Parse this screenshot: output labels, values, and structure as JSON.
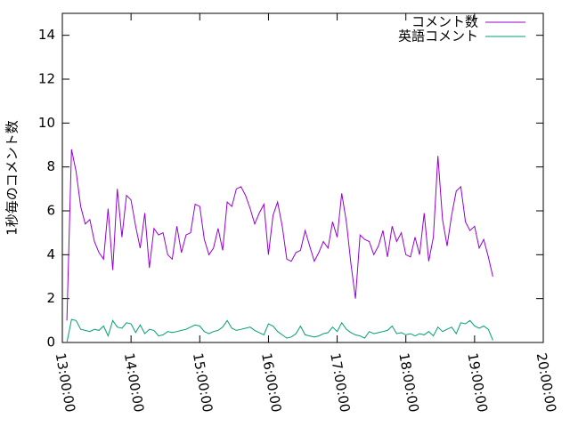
{
  "chart_data": {
    "type": "line",
    "ylabel": "1秒毎のコメント数",
    "x": [
      "13:04:00",
      "13:08:00",
      "13:12:00",
      "13:16:00",
      "13:20:00",
      "13:24:00",
      "13:28:00",
      "13:32:00",
      "13:36:00",
      "13:40:00",
      "13:44:00",
      "13:48:00",
      "13:52:00",
      "13:56:00",
      "14:00:00",
      "14:04:00",
      "14:08:00",
      "14:12:00",
      "14:16:00",
      "14:20:00",
      "14:24:00",
      "14:28:00",
      "14:32:00",
      "14:36:00",
      "14:40:00",
      "14:44:00",
      "14:48:00",
      "14:52:00",
      "14:56:00",
      "15:00:00",
      "15:04:00",
      "15:08:00",
      "15:12:00",
      "15:16:00",
      "15:20:00",
      "15:24:00",
      "15:28:00",
      "15:32:00",
      "15:36:00",
      "15:40:00",
      "15:44:00",
      "15:48:00",
      "15:52:00",
      "15:56:00",
      "16:00:00",
      "16:04:00",
      "16:08:00",
      "16:12:00",
      "16:16:00",
      "16:20:00",
      "16:24:00",
      "16:28:00",
      "16:32:00",
      "16:36:00",
      "16:40:00",
      "16:44:00",
      "16:48:00",
      "16:52:00",
      "16:56:00",
      "17:00:00",
      "17:04:00",
      "17:08:00",
      "17:12:00",
      "17:16:00",
      "17:20:00",
      "17:24:00",
      "17:28:00",
      "17:32:00",
      "17:36:00",
      "17:40:00",
      "17:44:00",
      "17:48:00",
      "17:52:00",
      "17:56:00",
      "18:00:00",
      "18:04:00",
      "18:08:00",
      "18:12:00",
      "18:16:00",
      "18:20:00",
      "18:24:00",
      "18:28:00",
      "18:32:00",
      "18:36:00",
      "18:40:00",
      "18:44:00",
      "18:48:00",
      "18:52:00",
      "18:56:00",
      "19:00:00",
      "19:04:00",
      "19:08:00",
      "19:12:00",
      "19:16:00"
    ],
    "series": [
      {
        "name": "コメント数",
        "color": "#9400d3",
        "values": [
          1.0,
          8.8,
          7.8,
          6.2,
          5.4,
          5.6,
          4.6,
          4.1,
          3.8,
          6.1,
          3.3,
          7.0,
          4.8,
          6.7,
          6.5,
          5.3,
          4.3,
          5.9,
          3.4,
          5.2,
          4.9,
          5.0,
          4.0,
          3.8,
          5.3,
          4.1,
          4.9,
          5.0,
          6.3,
          6.2,
          4.7,
          4.0,
          4.3,
          5.2,
          4.2,
          6.4,
          6.2,
          7.0,
          7.1,
          6.7,
          6.1,
          5.4,
          5.9,
          6.3,
          4.0,
          5.8,
          6.4,
          5.3,
          3.8,
          3.7,
          4.1,
          4.2,
          5.1,
          4.4,
          3.7,
          4.1,
          4.6,
          4.3,
          5.5,
          4.8,
          6.8,
          5.5,
          3.6,
          2.0,
          4.9,
          4.7,
          4.6,
          4.0,
          4.4,
          5.1,
          3.9,
          5.3,
          4.6,
          5.0,
          4.0,
          3.9,
          4.8,
          4.0,
          5.9,
          3.7,
          4.8,
          8.5,
          5.6,
          4.4,
          5.8,
          6.9,
          7.1,
          5.5,
          5.1,
          5.3,
          4.3,
          4.7,
          3.9,
          3.0
        ]
      },
      {
        "name": "英語コメント",
        "color": "#009e73",
        "values": [
          0.0,
          1.05,
          1.0,
          0.6,
          0.55,
          0.5,
          0.6,
          0.55,
          0.75,
          0.3,
          1.0,
          0.7,
          0.65,
          0.9,
          0.85,
          0.45,
          0.8,
          0.4,
          0.6,
          0.55,
          0.3,
          0.35,
          0.5,
          0.45,
          0.5,
          0.55,
          0.6,
          0.7,
          0.8,
          0.75,
          0.5,
          0.4,
          0.5,
          0.55,
          0.7,
          1.0,
          0.65,
          0.55,
          0.6,
          0.65,
          0.7,
          0.55,
          0.45,
          0.35,
          0.85,
          0.75,
          0.5,
          0.35,
          0.2,
          0.25,
          0.4,
          0.75,
          0.35,
          0.3,
          0.25,
          0.3,
          0.4,
          0.45,
          0.7,
          0.5,
          0.9,
          0.6,
          0.45,
          0.35,
          0.3,
          0.2,
          0.5,
          0.4,
          0.45,
          0.5,
          0.55,
          0.75,
          0.4,
          0.45,
          0.35,
          0.4,
          0.3,
          0.4,
          0.35,
          0.5,
          0.3,
          0.7,
          0.5,
          0.6,
          0.7,
          0.4,
          0.9,
          0.85,
          1.0,
          0.75,
          0.65,
          0.75,
          0.6,
          0.1
        ]
      }
    ],
    "xlim": [
      "13:00:00",
      "20:00:00"
    ],
    "xticks": [
      "13:00:00",
      "14:00:00",
      "15:00:00",
      "16:00:00",
      "17:00:00",
      "18:00:00",
      "19:00:00",
      "20:00:00"
    ],
    "ylim": [
      0,
      15
    ],
    "yticks": [
      0,
      2,
      4,
      6,
      8,
      10,
      12,
      14
    ],
    "legend": "top-right"
  }
}
